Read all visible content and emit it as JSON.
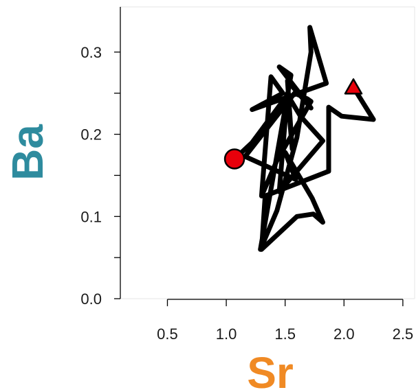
{
  "chart_data": {
    "type": "line",
    "xlabel": "Sr",
    "ylabel": "Ba",
    "xlim": [
      0.1,
      2.6
    ],
    "ylim": [
      0.0,
      0.355
    ],
    "xticks": [
      "0.5",
      "1.0",
      "1.5",
      "2.0",
      "2.5"
    ],
    "yticks": [
      "0.0",
      "0.1",
      "0.2",
      "0.3"
    ],
    "xlabel_color": "#f08a24",
    "ylabel_color": "#2e8b9e",
    "line_color": "#000000",
    "marker_color": "#e8000b",
    "series": [
      {
        "points": [
          [
            1.07,
            0.17
          ],
          [
            1.22,
            0.19
          ],
          [
            1.52,
            0.248
          ],
          [
            1.63,
            0.222
          ],
          [
            1.82,
            0.192
          ],
          [
            1.45,
            0.13
          ],
          [
            1.52,
            0.25
          ],
          [
            1.56,
            0.182
          ],
          [
            1.52,
            0.265
          ],
          [
            1.72,
            0.232
          ],
          [
            1.45,
            0.282
          ],
          [
            1.55,
            0.272
          ],
          [
            1.29,
            0.06
          ],
          [
            1.43,
            0.107
          ],
          [
            1.6,
            0.196
          ],
          [
            1.72,
            0.3
          ],
          [
            1.71,
            0.33
          ],
          [
            1.85,
            0.262
          ],
          [
            1.22,
            0.23
          ],
          [
            1.48,
            0.25
          ],
          [
            1.38,
            0.27
          ],
          [
            1.3,
            0.125
          ],
          [
            1.43,
            0.168
          ],
          [
            1.72,
            0.24
          ],
          [
            1.69,
            0.243
          ],
          [
            1.58,
            0.25
          ],
          [
            1.16,
            0.173
          ],
          [
            1.59,
            0.145
          ],
          [
            1.5,
            0.178
          ],
          [
            1.73,
            0.122
          ],
          [
            1.82,
            0.093
          ],
          [
            1.74,
            0.103
          ],
          [
            1.6,
            0.1
          ],
          [
            1.3,
            0.06
          ],
          [
            1.33,
            0.125
          ],
          [
            1.87,
            0.155
          ],
          [
            1.87,
            0.233
          ],
          [
            1.98,
            0.222
          ],
          [
            2.25,
            0.218
          ],
          [
            2.08,
            0.257
          ]
        ],
        "start_marker": "circle",
        "end_marker": "triangle"
      }
    ]
  }
}
